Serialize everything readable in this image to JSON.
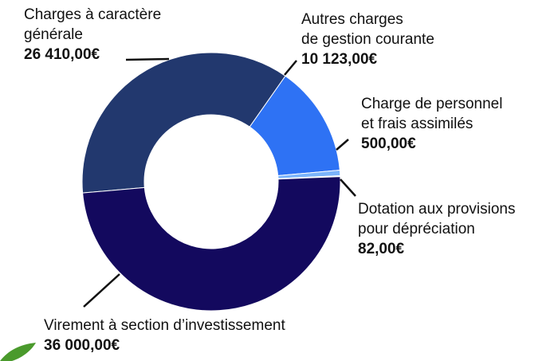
{
  "chart_data": {
    "type": "donut",
    "categories": [
      "Charges à caractère\ngénérale",
      "Autres charges\nde gestion courante",
      "Charge de personnel\net frais assimilés",
      "Dotation aux provisions\npour dépréciation",
      "Virement à section d’investissement"
    ],
    "values": [
      26410,
      10123,
      500,
      82,
      36000
    ],
    "value_labels": [
      "26 410,00€",
      "10 123,00€",
      "500,00€",
      "82,00€",
      "36 000,00€"
    ],
    "colors": [
      "#22386e",
      "#2e72f4",
      "#7bb4fb",
      "#22b4e8",
      "#13095e"
    ]
  }
}
